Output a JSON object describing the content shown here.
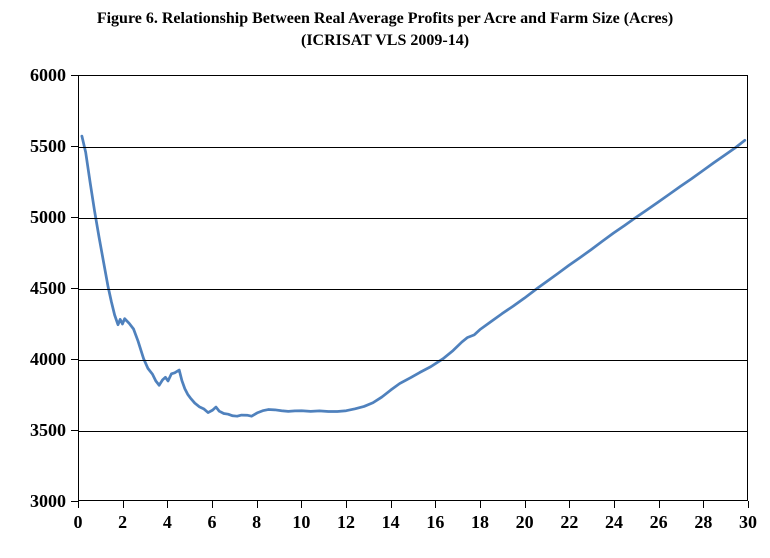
{
  "figure": {
    "background": "#ffffff",
    "text_color": "#000000",
    "grid_color": "#000000"
  },
  "chart_data": {
    "type": "line",
    "title": "Figure 6. Relationship Between Real Average Profits per Acre and Farm Size (Acres)",
    "subtitle": "(ICRISAT VLS 2009-14)",
    "xlabel": "",
    "ylabel": "",
    "xlim": [
      0,
      30
    ],
    "ylim": [
      3000,
      6000
    ],
    "xticks": [
      0,
      2,
      4,
      6,
      8,
      10,
      12,
      14,
      16,
      18,
      20,
      22,
      24,
      26,
      28,
      30
    ],
    "yticks": [
      3000,
      3500,
      4000,
      4500,
      5000,
      5500,
      6000
    ],
    "grid": "horizontal",
    "legend_position": "none",
    "line_color": "#4F81BD",
    "line_width": 2.75,
    "series": [
      {
        "points": [
          [
            0.13,
            5575
          ],
          [
            0.3,
            5460
          ],
          [
            0.5,
            5245
          ],
          [
            0.7,
            5045
          ],
          [
            0.9,
            4860
          ],
          [
            1.1,
            4685
          ],
          [
            1.3,
            4515
          ],
          [
            1.45,
            4405
          ],
          [
            1.6,
            4310
          ],
          [
            1.75,
            4240
          ],
          [
            1.85,
            4278
          ],
          [
            1.95,
            4245
          ],
          [
            2.05,
            4283
          ],
          [
            2.25,
            4250
          ],
          [
            2.45,
            4210
          ],
          [
            2.65,
            4125
          ],
          [
            2.9,
            4000
          ],
          [
            3.1,
            3930
          ],
          [
            3.3,
            3890
          ],
          [
            3.45,
            3843
          ],
          [
            3.6,
            3812
          ],
          [
            3.75,
            3850
          ],
          [
            3.88,
            3868
          ],
          [
            4.0,
            3842
          ],
          [
            4.15,
            3893
          ],
          [
            4.3,
            3900
          ],
          [
            4.5,
            3920
          ],
          [
            4.62,
            3845
          ],
          [
            4.75,
            3788
          ],
          [
            4.88,
            3748
          ],
          [
            5.0,
            3722
          ],
          [
            5.2,
            3686
          ],
          [
            5.4,
            3660
          ],
          [
            5.6,
            3645
          ],
          [
            5.8,
            3618
          ],
          [
            6.0,
            3636
          ],
          [
            6.15,
            3658
          ],
          [
            6.3,
            3628
          ],
          [
            6.5,
            3612
          ],
          [
            6.7,
            3607
          ],
          [
            6.9,
            3596
          ],
          [
            7.1,
            3593
          ],
          [
            7.3,
            3601
          ],
          [
            7.55,
            3600
          ],
          [
            7.75,
            3593
          ],
          [
            8.0,
            3616
          ],
          [
            8.25,
            3632
          ],
          [
            8.5,
            3640
          ],
          [
            8.8,
            3638
          ],
          [
            9.1,
            3632
          ],
          [
            9.4,
            3627
          ],
          [
            9.7,
            3630
          ],
          [
            10.0,
            3632
          ],
          [
            10.4,
            3627
          ],
          [
            10.8,
            3630
          ],
          [
            11.2,
            3626
          ],
          [
            11.6,
            3626
          ],
          [
            12.0,
            3632
          ],
          [
            12.4,
            3645
          ],
          [
            12.8,
            3662
          ],
          [
            13.2,
            3688
          ],
          [
            13.6,
            3728
          ],
          [
            14.0,
            3778
          ],
          [
            14.4,
            3824
          ],
          [
            14.9,
            3866
          ],
          [
            15.3,
            3902
          ],
          [
            15.8,
            3944
          ],
          [
            16.35,
            4000
          ],
          [
            16.8,
            4058
          ],
          [
            17.2,
            4118
          ],
          [
            17.45,
            4150
          ],
          [
            17.75,
            4168
          ],
          [
            18.0,
            4205
          ],
          [
            18.5,
            4262
          ],
          [
            19.0,
            4318
          ],
          [
            19.5,
            4372
          ],
          [
            20.0,
            4428
          ],
          [
            20.6,
            4500
          ],
          [
            21.0,
            4545
          ],
          [
            21.5,
            4602
          ],
          [
            22.0,
            4660
          ],
          [
            22.5,
            4715
          ],
          [
            23.0,
            4772
          ],
          [
            23.5,
            4830
          ],
          [
            24.0,
            4888
          ],
          [
            24.5,
            4942
          ],
          [
            25.0,
            4998
          ],
          [
            25.5,
            5052
          ],
          [
            26.0,
            5106
          ],
          [
            26.5,
            5162
          ],
          [
            27.0,
            5218
          ],
          [
            27.5,
            5272
          ],
          [
            28.0,
            5328
          ],
          [
            28.5,
            5385
          ],
          [
            29.0,
            5440
          ],
          [
            29.5,
            5495
          ],
          [
            29.9,
            5545
          ]
        ]
      }
    ]
  }
}
